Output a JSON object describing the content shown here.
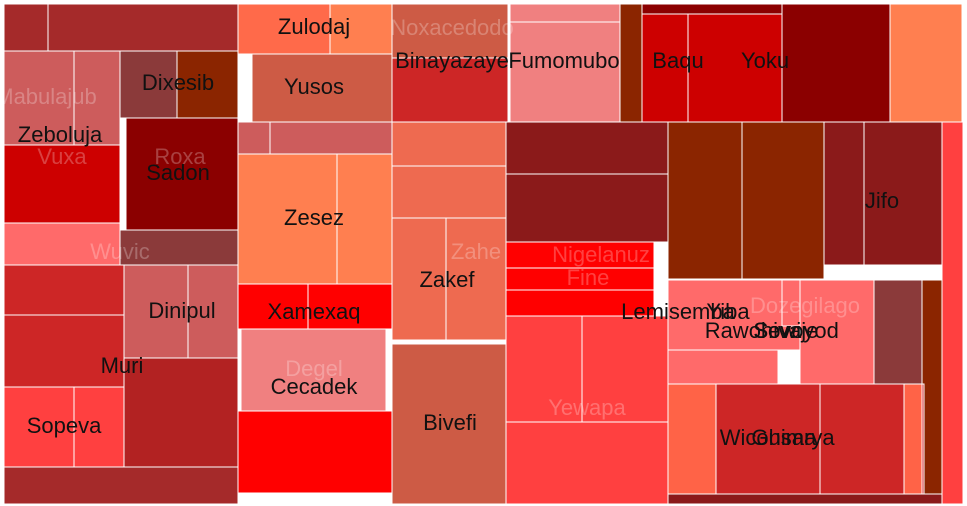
{
  "chart_data": {
    "type": "treemap",
    "colors": {
      "dark_red": "#8b0000",
      "brown_red": "#8b2500",
      "crimson": "#8b1a1a",
      "brick": "#a52a2a",
      "firebrick": "#b22222",
      "red": "#ff0000",
      "red_mid": "#cd0000",
      "tomato": "#ff4040",
      "coral": "#ff7f50",
      "salmon": "#f08080",
      "indian_red": "#cd5c5c",
      "light_red": "#ff6a6a",
      "sienna": "#cd5b45",
      "orange_red": "#ee6a50",
      "rust": "#8b3a3a"
    },
    "cells": [
      {
        "color": "#a52a2a"
      },
      {
        "color": "#a52a2a"
      },
      {
        "color": "#cd5c5c",
        "label": "Mabulajub"
      },
      {
        "color": "#cd5c5c"
      },
      {
        "color": "#8b3a3a",
        "label": "Dixesib"
      },
      {
        "color": "#8b2500"
      },
      {
        "color": "#cd0000",
        "label": "Vuxa"
      },
      {
        "color": "#8b0000",
        "label": "Roxa"
      },
      {
        "color": "#8b0000",
        "label": "Sadon"
      },
      {
        "label": "Zeboluja"
      },
      {
        "color": "#ff6a6a"
      },
      {
        "color": "#8b3a3a",
        "label": "Wuvic"
      },
      {
        "color": "#cd2626"
      },
      {
        "color": "#cd2626"
      },
      {
        "color": "#cd5c5c",
        "label": "Dinipul"
      },
      {
        "color": "#cd5c5c"
      },
      {
        "color": "#b22222",
        "label": "Muri"
      },
      {
        "color": "#ff4040",
        "label": "Sopeva"
      },
      {
        "color": "#ff4040"
      },
      {
        "color": "#a52a2a"
      },
      {
        "color": "#ff6a4a",
        "label": "Zulodaj"
      },
      {
        "color": "#ff7f50"
      },
      {
        "color": "#cd5b45",
        "label": "Yusos"
      },
      {
        "color": "#cd5c5c"
      },
      {
        "color": "#cd5c5c"
      },
      {
        "color": "#ff7f50",
        "label": "Zesez"
      },
      {
        "color": "#ff7f50"
      },
      {
        "color": "#ff0000",
        "label": "Xamexaq"
      },
      {
        "color": "#ff0000"
      },
      {
        "color": "#f08080",
        "label": "Degel"
      },
      {
        "label": "Cecadek"
      },
      {
        "color": "#ff0000"
      },
      {
        "color": "#cd5b45"
      },
      {
        "color": "#cd5b45",
        "label": "Noxacedodo"
      },
      {
        "color": "#cd2626",
        "label": "Binayazaye"
      },
      {
        "color": "#ee6a50"
      },
      {
        "color": "#ee6a50"
      },
      {
        "color": "#ee6a50",
        "label": "Zahe"
      },
      {
        "color": "#ee6a50"
      },
      {
        "label": "Zakef"
      },
      {
        "color": "#cd5b45",
        "label": "Bivefi"
      },
      {
        "color": "#f08080"
      },
      {
        "color": "#f08080",
        "label": "Fumomubo"
      },
      {
        "color": "#8b2500"
      },
      {
        "color": "#8b0000"
      },
      {
        "color": "#cd0000",
        "label": "Baqu"
      },
      {
        "color": "#cd0000"
      },
      {
        "color": "#8b0000",
        "label": "Yoku"
      },
      {
        "color": "#ff7f50"
      },
      {
        "color": "#8b1a1a"
      },
      {
        "color": "#8b1a1a"
      },
      {
        "color": "#ff0000",
        "label": "Nigelanuz"
      },
      {
        "color": "#ff0000",
        "label": "Fine"
      },
      {
        "color": "#ff4040",
        "label": "Yewapa"
      },
      {
        "color": "#ff4040"
      },
      {
        "color": "#ff4040"
      },
      {
        "color": "#8b2500"
      },
      {
        "color": "#8b2500"
      },
      {
        "color": "#8b1a1a",
        "label": "Jifo"
      },
      {
        "color": "#8b1a1a"
      },
      {
        "color": "#ff6a6a",
        "label": "Lemisemba"
      },
      {
        "color": "#ff6a6a",
        "label": "Yiba"
      },
      {
        "color": "#ff6a6a",
        "label": "Dozegilago"
      },
      {
        "color": "#ff6a6a",
        "label": "Sevoyod"
      },
      {
        "label": "Rawohiva"
      },
      {
        "label": "Sowije"
      },
      {
        "color": "#8b3a3a"
      },
      {
        "color": "#8b2500"
      },
      {
        "color": "#ff6347"
      },
      {
        "color": "#cd2626",
        "label": "Wicohima"
      },
      {
        "color": "#cd2626",
        "label": "Gusarya"
      },
      {
        "color": "#ff6347"
      },
      {
        "color": "#8b1a1a"
      },
      {
        "color": "#ff4040"
      }
    ]
  }
}
